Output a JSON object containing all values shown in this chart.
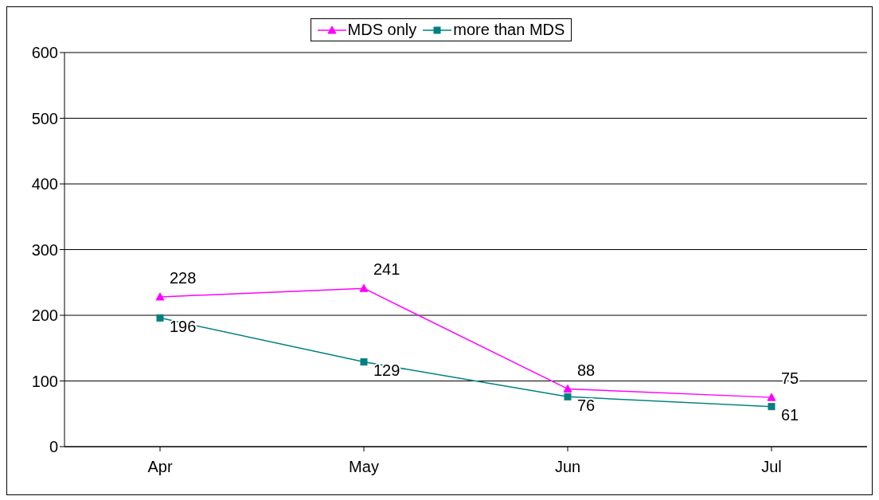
{
  "chart_data": {
    "type": "line",
    "categories": [
      "Apr",
      "May",
      "Jun",
      "Jul"
    ],
    "series": [
      {
        "name": "MDS only",
        "color": "#ff00ff",
        "marker": "triangle",
        "values": [
          228,
          241,
          88,
          75
        ]
      },
      {
        "name": "more than MDS",
        "color": "#008080",
        "marker": "square",
        "values": [
          196,
          129,
          76,
          61
        ]
      }
    ],
    "ylim": [
      0,
      600
    ],
    "yticks": [
      0,
      100,
      200,
      300,
      400,
      500,
      600
    ],
    "grid": "y",
    "legend": "top",
    "data_labels": true,
    "line_style": "solid"
  }
}
